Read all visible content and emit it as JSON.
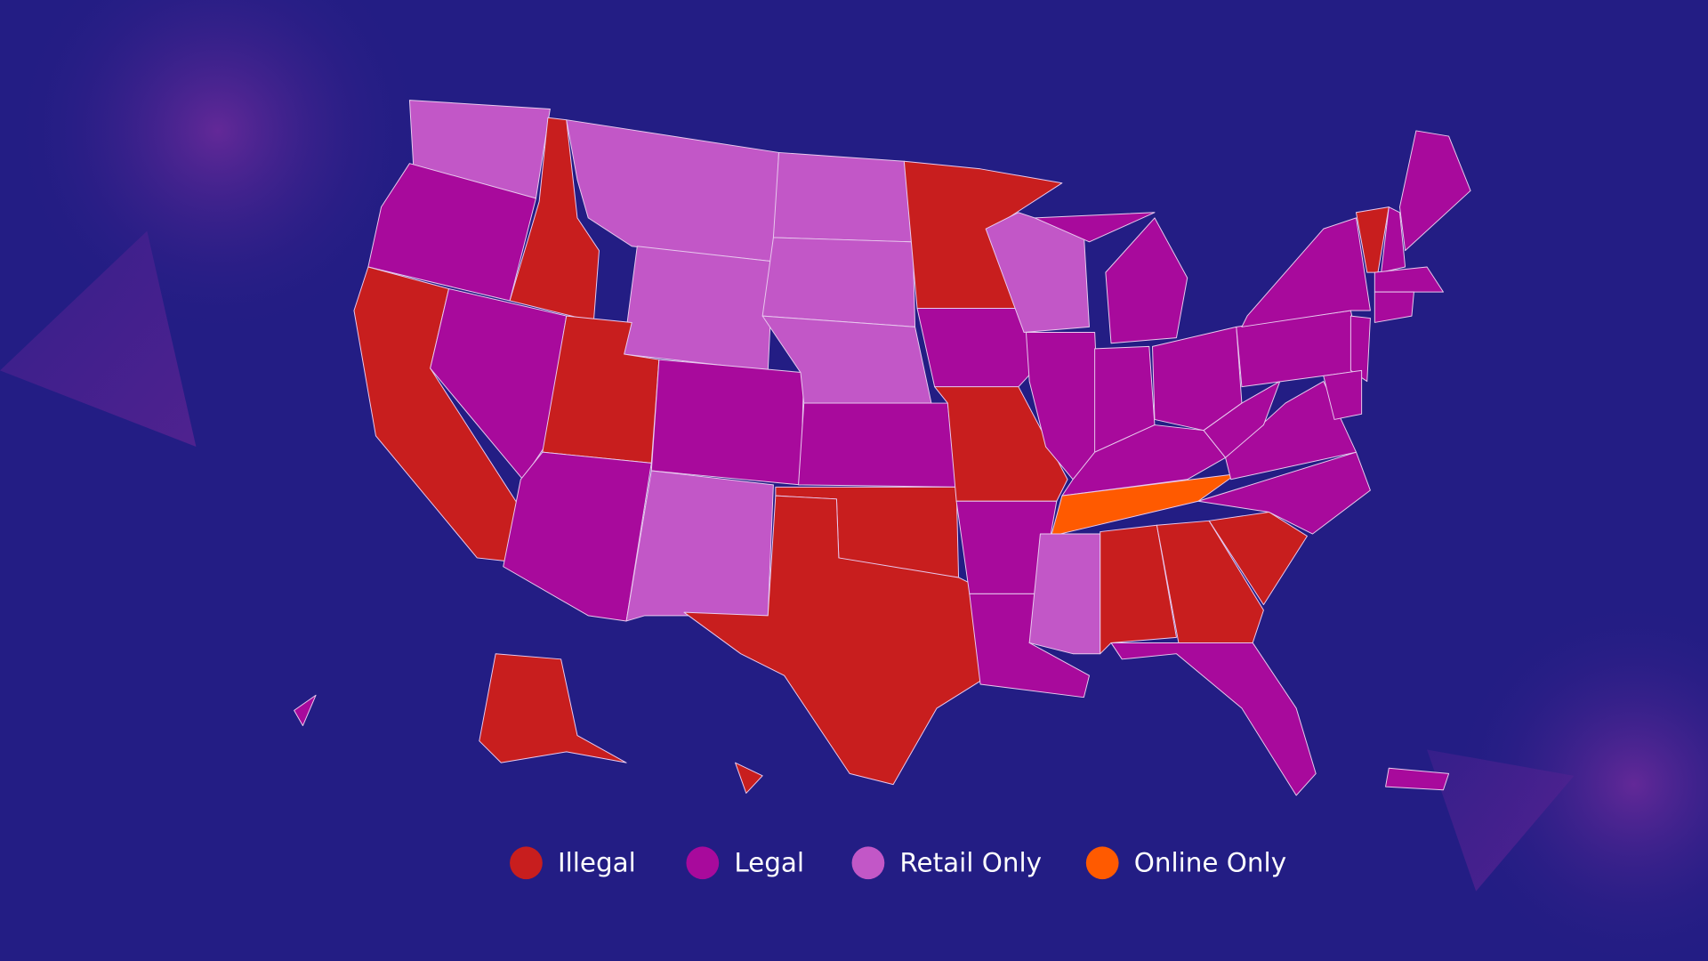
{
  "legend": {
    "items": [
      {
        "label": "Illegal",
        "color": "#c81e1e"
      },
      {
        "label": "Legal",
        "color": "#a80a9c"
      },
      {
        "label": "Retail Only",
        "color": "#c257c7"
      },
      {
        "label": "Online Only",
        "color": "#ff5a00"
      }
    ]
  }
}
